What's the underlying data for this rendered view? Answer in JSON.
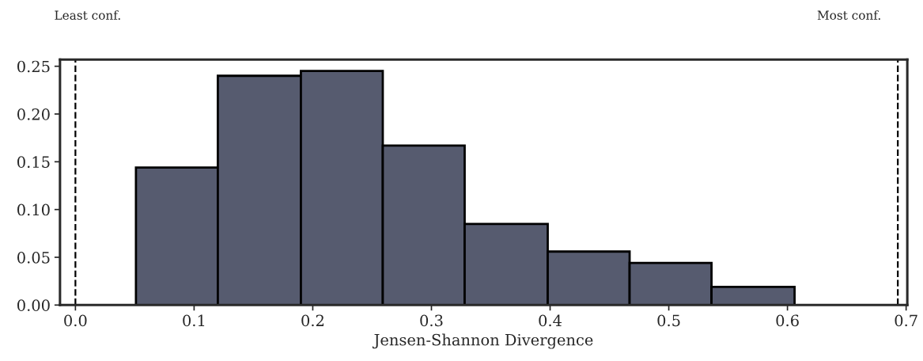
{
  "chart_data": {
    "type": "histogram",
    "xlabel": "Jensen-Shannon Divergence",
    "bins": [
      0.051,
      0.12,
      0.19,
      0.259,
      0.328,
      0.398,
      0.467,
      0.536,
      0.606
    ],
    "values": [
      0.144,
      0.24,
      0.245,
      0.167,
      0.085,
      0.056,
      0.044,
      0.019
    ],
    "color": "#565b6f",
    "xlim": [
      -0.013,
      0.701
    ],
    "ylim": [
      0,
      0.257
    ],
    "xticks": [
      {
        "value": 0,
        "label": "0.0"
      },
      0.1,
      0.2,
      0.3,
      0.4,
      0.5,
      0.6,
      0.7
    ],
    "yticks": [
      {
        "value": 0,
        "label": "0.00"
      },
      0.05,
      {
        "value": 0.1,
        "label": "0.10"
      },
      0.15,
      {
        "value": 0.2,
        "label": "0.20"
      },
      0.25
    ],
    "ref_lines": [
      {
        "axis": "x",
        "value": 0,
        "color": "#000000",
        "line_style": "dashed"
      },
      {
        "axis": "x",
        "value": 0.693,
        "color": "#000000",
        "line_style": "dashed"
      }
    ],
    "annotations": [
      "Least conf.",
      "Most conf."
    ],
    "grid": false,
    "legend": false
  }
}
